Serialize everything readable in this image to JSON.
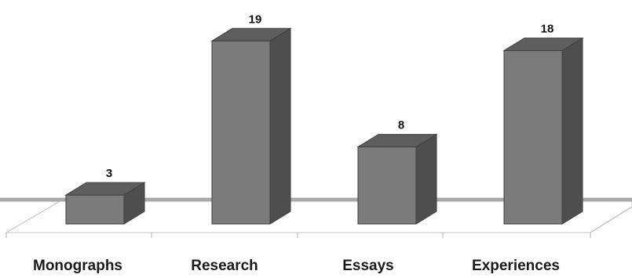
{
  "chart_data": {
    "type": "bar",
    "categories": [
      "Monographs",
      "Research",
      "Essays",
      "Experiences"
    ],
    "values": [
      3,
      19,
      8,
      18
    ],
    "title": "",
    "xlabel": "",
    "ylabel": "",
    "ylim": [
      0,
      19
    ],
    "grid": false,
    "legend": "none",
    "data_labels": true,
    "bar_style": "3d",
    "colors": {
      "bar_front": "#7b7b7b",
      "bar_top": "#5e5e5e",
      "bar_side": "#4e4e4e",
      "bar_edge": "#3f3f3f",
      "floor_line": "#a9a9a9"
    }
  }
}
